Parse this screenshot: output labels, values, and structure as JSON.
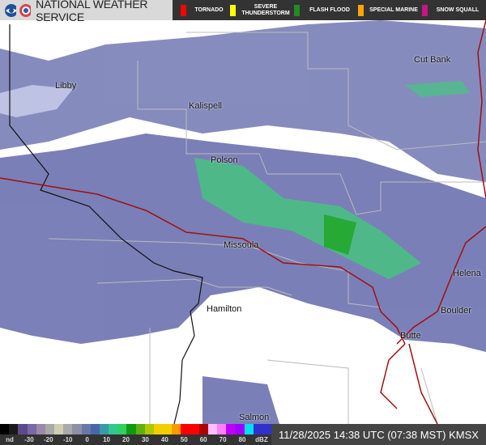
{
  "header": {
    "title": "NATIONAL WEATHER SERVICE",
    "logos": [
      "noaa-logo",
      "nws-logo"
    ]
  },
  "legend": [
    {
      "label": "TORNADO",
      "color": "#ff0000"
    },
    {
      "label": "SEVERE THUNDERSTORM",
      "color": "#ffff00"
    },
    {
      "label": "FLASH FLOOD",
      "color": "#228b22"
    },
    {
      "label": "SPECIAL MARINE",
      "color": "#ffa500"
    },
    {
      "label": "SNOW SQUALL",
      "color": "#c71585"
    }
  ],
  "cities": [
    "Libby",
    "Kalispell",
    "Cut Bank",
    "Polson",
    "Missoula",
    "Helena",
    "Hamilton",
    "Boulder",
    "Butte",
    "Salmon"
  ],
  "colorbar": {
    "ticks": [
      "nd",
      "-30",
      "-20",
      "-10",
      "0",
      "10",
      "20",
      "30",
      "40",
      "50",
      "60",
      "70",
      "80",
      "dBZ"
    ],
    "colors": [
      "#000000",
      "#1a1a1a",
      "#5c4a8a",
      "#7a68a8",
      "#9a8aaa",
      "#a9a9a9",
      "#cfcfb0",
      "#aaaaaa",
      "#8f8fa8",
      "#6a78a8",
      "#4a66a8",
      "#3a9aa8",
      "#30c890",
      "#30d060",
      "#109a10",
      "#60b010",
      "#b0c800",
      "#f0d000",
      "#f0d000",
      "#ff9900",
      "#ff0000",
      "#ff0000",
      "#b00000",
      "#ffc0ff",
      "#ff80ff",
      "#c000ff",
      "#a000ff",
      "#00e0f0",
      "#3030d0",
      "#3030d0"
    ]
  },
  "timestamp": "11/28/2025 14:38 UTC (07:38 MST) KMSX"
}
